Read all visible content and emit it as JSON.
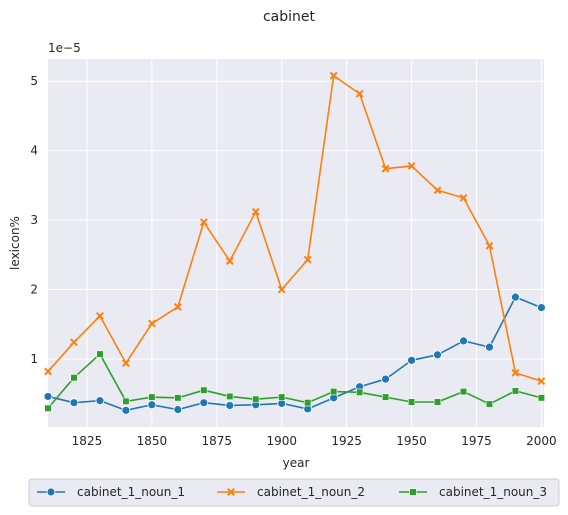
{
  "chart_data": {
    "type": "line",
    "title": "cabinet",
    "xlabel": "year",
    "ylabel": "lexicon%",
    "y_offset_label": "1e−5",
    "x_ticks": [
      "1825",
      "1850",
      "1875",
      "1900",
      "1925",
      "1950",
      "1975",
      "2000"
    ],
    "y_ticks": [
      "1",
      "2",
      "3",
      "4",
      "5"
    ],
    "xlim": [
      1810,
      2001
    ],
    "ylim": [
      0.02,
      5.32
    ],
    "grid": true,
    "legend_position": "bottom",
    "x": [
      1810,
      1820,
      1830,
      1840,
      1850,
      1860,
      1870,
      1880,
      1890,
      1900,
      1910,
      1920,
      1930,
      1940,
      1950,
      1960,
      1970,
      1980,
      1990,
      2000
    ],
    "series": [
      {
        "name": "cabinet_1_noun_1",
        "color": "#1f77b4",
        "marker": "circle",
        "values": [
          0.46,
          0.37,
          0.4,
          0.26,
          0.34,
          0.27,
          0.37,
          0.33,
          0.34,
          0.36,
          0.28,
          0.44,
          0.6,
          0.71,
          0.98,
          1.06,
          1.26,
          1.17,
          1.89,
          1.74
        ]
      },
      {
        "name": "cabinet_1_noun_2",
        "color": "#ff7f0e",
        "marker": "x",
        "values": [
          0.82,
          1.24,
          1.62,
          0.94,
          1.51,
          1.75,
          2.97,
          2.41,
          3.12,
          2.0,
          2.43,
          5.08,
          4.82,
          3.74,
          3.78,
          3.43,
          3.32,
          2.63,
          0.8,
          0.68
        ]
      },
      {
        "name": "cabinet_1_noun_3",
        "color": "#2ca02c",
        "marker": "square",
        "values": [
          0.29,
          0.73,
          1.07,
          0.39,
          0.45,
          0.44,
          0.55,
          0.46,
          0.42,
          0.45,
          0.37,
          0.53,
          0.52,
          0.45,
          0.38,
          0.38,
          0.53,
          0.35,
          0.54,
          0.44
        ]
      }
    ]
  }
}
